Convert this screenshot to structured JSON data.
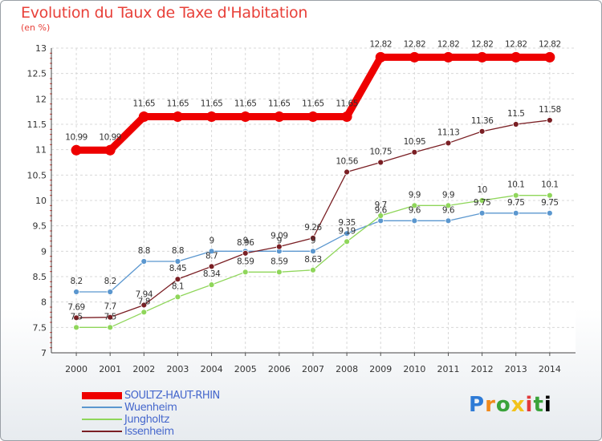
{
  "chart_data": {
    "type": "line",
    "title": "Evolution du Taux de Taxe d'Habitation",
    "subtitle": "(en %)",
    "x": [
      "2000",
      "2001",
      "2002",
      "2003",
      "2004",
      "2005",
      "2006",
      "2007",
      "2008",
      "2009",
      "2010",
      "2011",
      "2012",
      "2013",
      "2014"
    ],
    "ylim": [
      7,
      13
    ],
    "yticks": [
      "7",
      "7.5",
      "8",
      "8.5",
      "9",
      "9.5",
      "10",
      "10.5",
      "11",
      "11.5",
      "12",
      "12.5",
      "13"
    ],
    "grid": true,
    "legend_position": "bottom-left",
    "series": [
      {
        "name": "SOULTZ-HAUT-RHIN",
        "color": "#ee0000",
        "values": [
          10.99,
          10.99,
          11.65,
          11.65,
          11.65,
          11.65,
          11.65,
          11.65,
          11.65,
          12.82,
          12.82,
          12.82,
          12.82,
          12.82,
          12.82
        ],
        "labels": [
          "10.99",
          "10.99",
          "11.65",
          "11.65",
          "11.65",
          "11.65",
          "11.65",
          "11.65",
          "11.65",
          "12.82",
          "12.82",
          "12.82",
          "12.82",
          "12.82",
          "12.82"
        ]
      },
      {
        "name": "Wuenheim",
        "color": "#5b97cf",
        "values": [
          8.2,
          8.2,
          8.8,
          8.8,
          9,
          9,
          9,
          9,
          9.35,
          9.6,
          9.6,
          9.6,
          9.75,
          9.75,
          9.75
        ],
        "labels": [
          "8.2",
          "8.2",
          "8.8",
          "8.8",
          "9",
          "9",
          "9",
          "9",
          "9.35",
          "9.6",
          "9.6",
          "9.6",
          "9.75",
          "9.75",
          "9.75"
        ]
      },
      {
        "name": "Jungholtz",
        "color": "#8fd65a",
        "values": [
          7.5,
          7.5,
          7.8,
          8.1,
          8.34,
          8.59,
          8.59,
          8.63,
          9.19,
          9.7,
          9.9,
          9.9,
          10,
          10.1,
          10.1
        ],
        "labels": [
          "7.5",
          "7.5",
          "7.8",
          "8.1",
          "8.34",
          "8.59",
          "8.59",
          "8.63",
          "9.19",
          "9.7",
          "9.9",
          "9.9",
          "10",
          "10.1",
          "10.1"
        ]
      },
      {
        "name": "Issenheim",
        "color": "#7a1f24",
        "values": [
          7.69,
          7.7,
          7.94,
          8.45,
          8.7,
          8.96,
          9.09,
          9.26,
          10.56,
          10.75,
          10.95,
          11.13,
          11.36,
          11.5,
          11.58
        ],
        "labels": [
          "7.69",
          "7.7",
          "7.94",
          "8.45",
          "8.7",
          "8.96",
          "9.09",
          "9.26",
          "10.56",
          "10.75",
          "10.95",
          "11.13",
          "11.36",
          "11.5",
          "11.58"
        ]
      }
    ]
  },
  "logo": {
    "letters": [
      "P",
      "r",
      "o",
      "x",
      "i",
      "t",
      "i"
    ]
  }
}
